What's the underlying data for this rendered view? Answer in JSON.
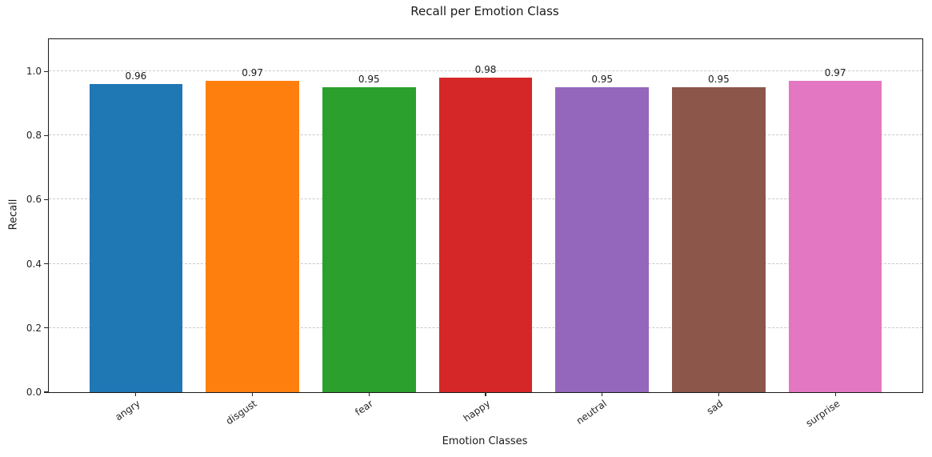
{
  "chart_data": {
    "type": "bar",
    "title": "Recall per Emotion Class",
    "xlabel": "Emotion Classes",
    "ylabel": "Recall",
    "categories": [
      "angry",
      "disgust",
      "fear",
      "happy",
      "neutral",
      "sad",
      "surprise"
    ],
    "values": [
      0.96,
      0.97,
      0.95,
      0.98,
      0.95,
      0.95,
      0.97
    ],
    "bar_labels": [
      "0.96",
      "0.97",
      "0.95",
      "0.98",
      "0.95",
      "0.95",
      "0.97"
    ],
    "bar_colors": [
      "#1f77b4",
      "#ff7f0e",
      "#2ca02c",
      "#d62728",
      "#9467bd",
      "#8c564b",
      "#e377c2"
    ],
    "ylim": [
      0,
      1.1
    ],
    "yticks": [
      0.0,
      0.2,
      0.4,
      0.6,
      0.8,
      1.0
    ],
    "ytick_labels": [
      "0.0",
      "0.2",
      "0.4",
      "0.6",
      "0.8",
      "1.0"
    ],
    "grid": "horizontal-dashed",
    "legend": "none",
    "background": "#ffffff"
  }
}
